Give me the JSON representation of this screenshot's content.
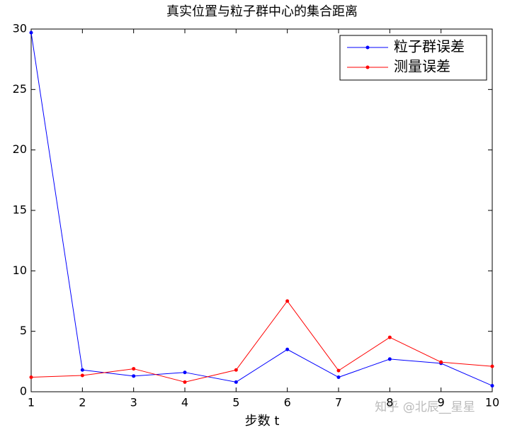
{
  "chart_data": {
    "type": "line",
    "title": "真实位置与粒子群中心的集合距离",
    "xlabel": "步数 t",
    "x": [
      1,
      2,
      3,
      4,
      5,
      6,
      7,
      8,
      9,
      10
    ],
    "series": [
      {
        "name": "粒子群误差",
        "color": "#0000ff",
        "values": [
          29.7,
          1.8,
          1.3,
          1.6,
          0.8,
          3.5,
          1.2,
          2.7,
          2.35,
          0.5
        ]
      },
      {
        "name": "测量误差",
        "color": "#ff0000",
        "values": [
          1.2,
          1.35,
          1.9,
          0.8,
          1.8,
          7.5,
          1.75,
          4.5,
          2.45,
          2.1
        ]
      }
    ],
    "xlim": [
      1,
      10
    ],
    "xticks": [
      1,
      2,
      3,
      4,
      5,
      6,
      7,
      8,
      9,
      10
    ],
    "ylim": [
      0,
      30
    ],
    "yticks": [
      0,
      5,
      10,
      15,
      20,
      25,
      30
    ],
    "grid": false,
    "legend": "upper right",
    "watermark": "知乎 @北辰__星星"
  }
}
